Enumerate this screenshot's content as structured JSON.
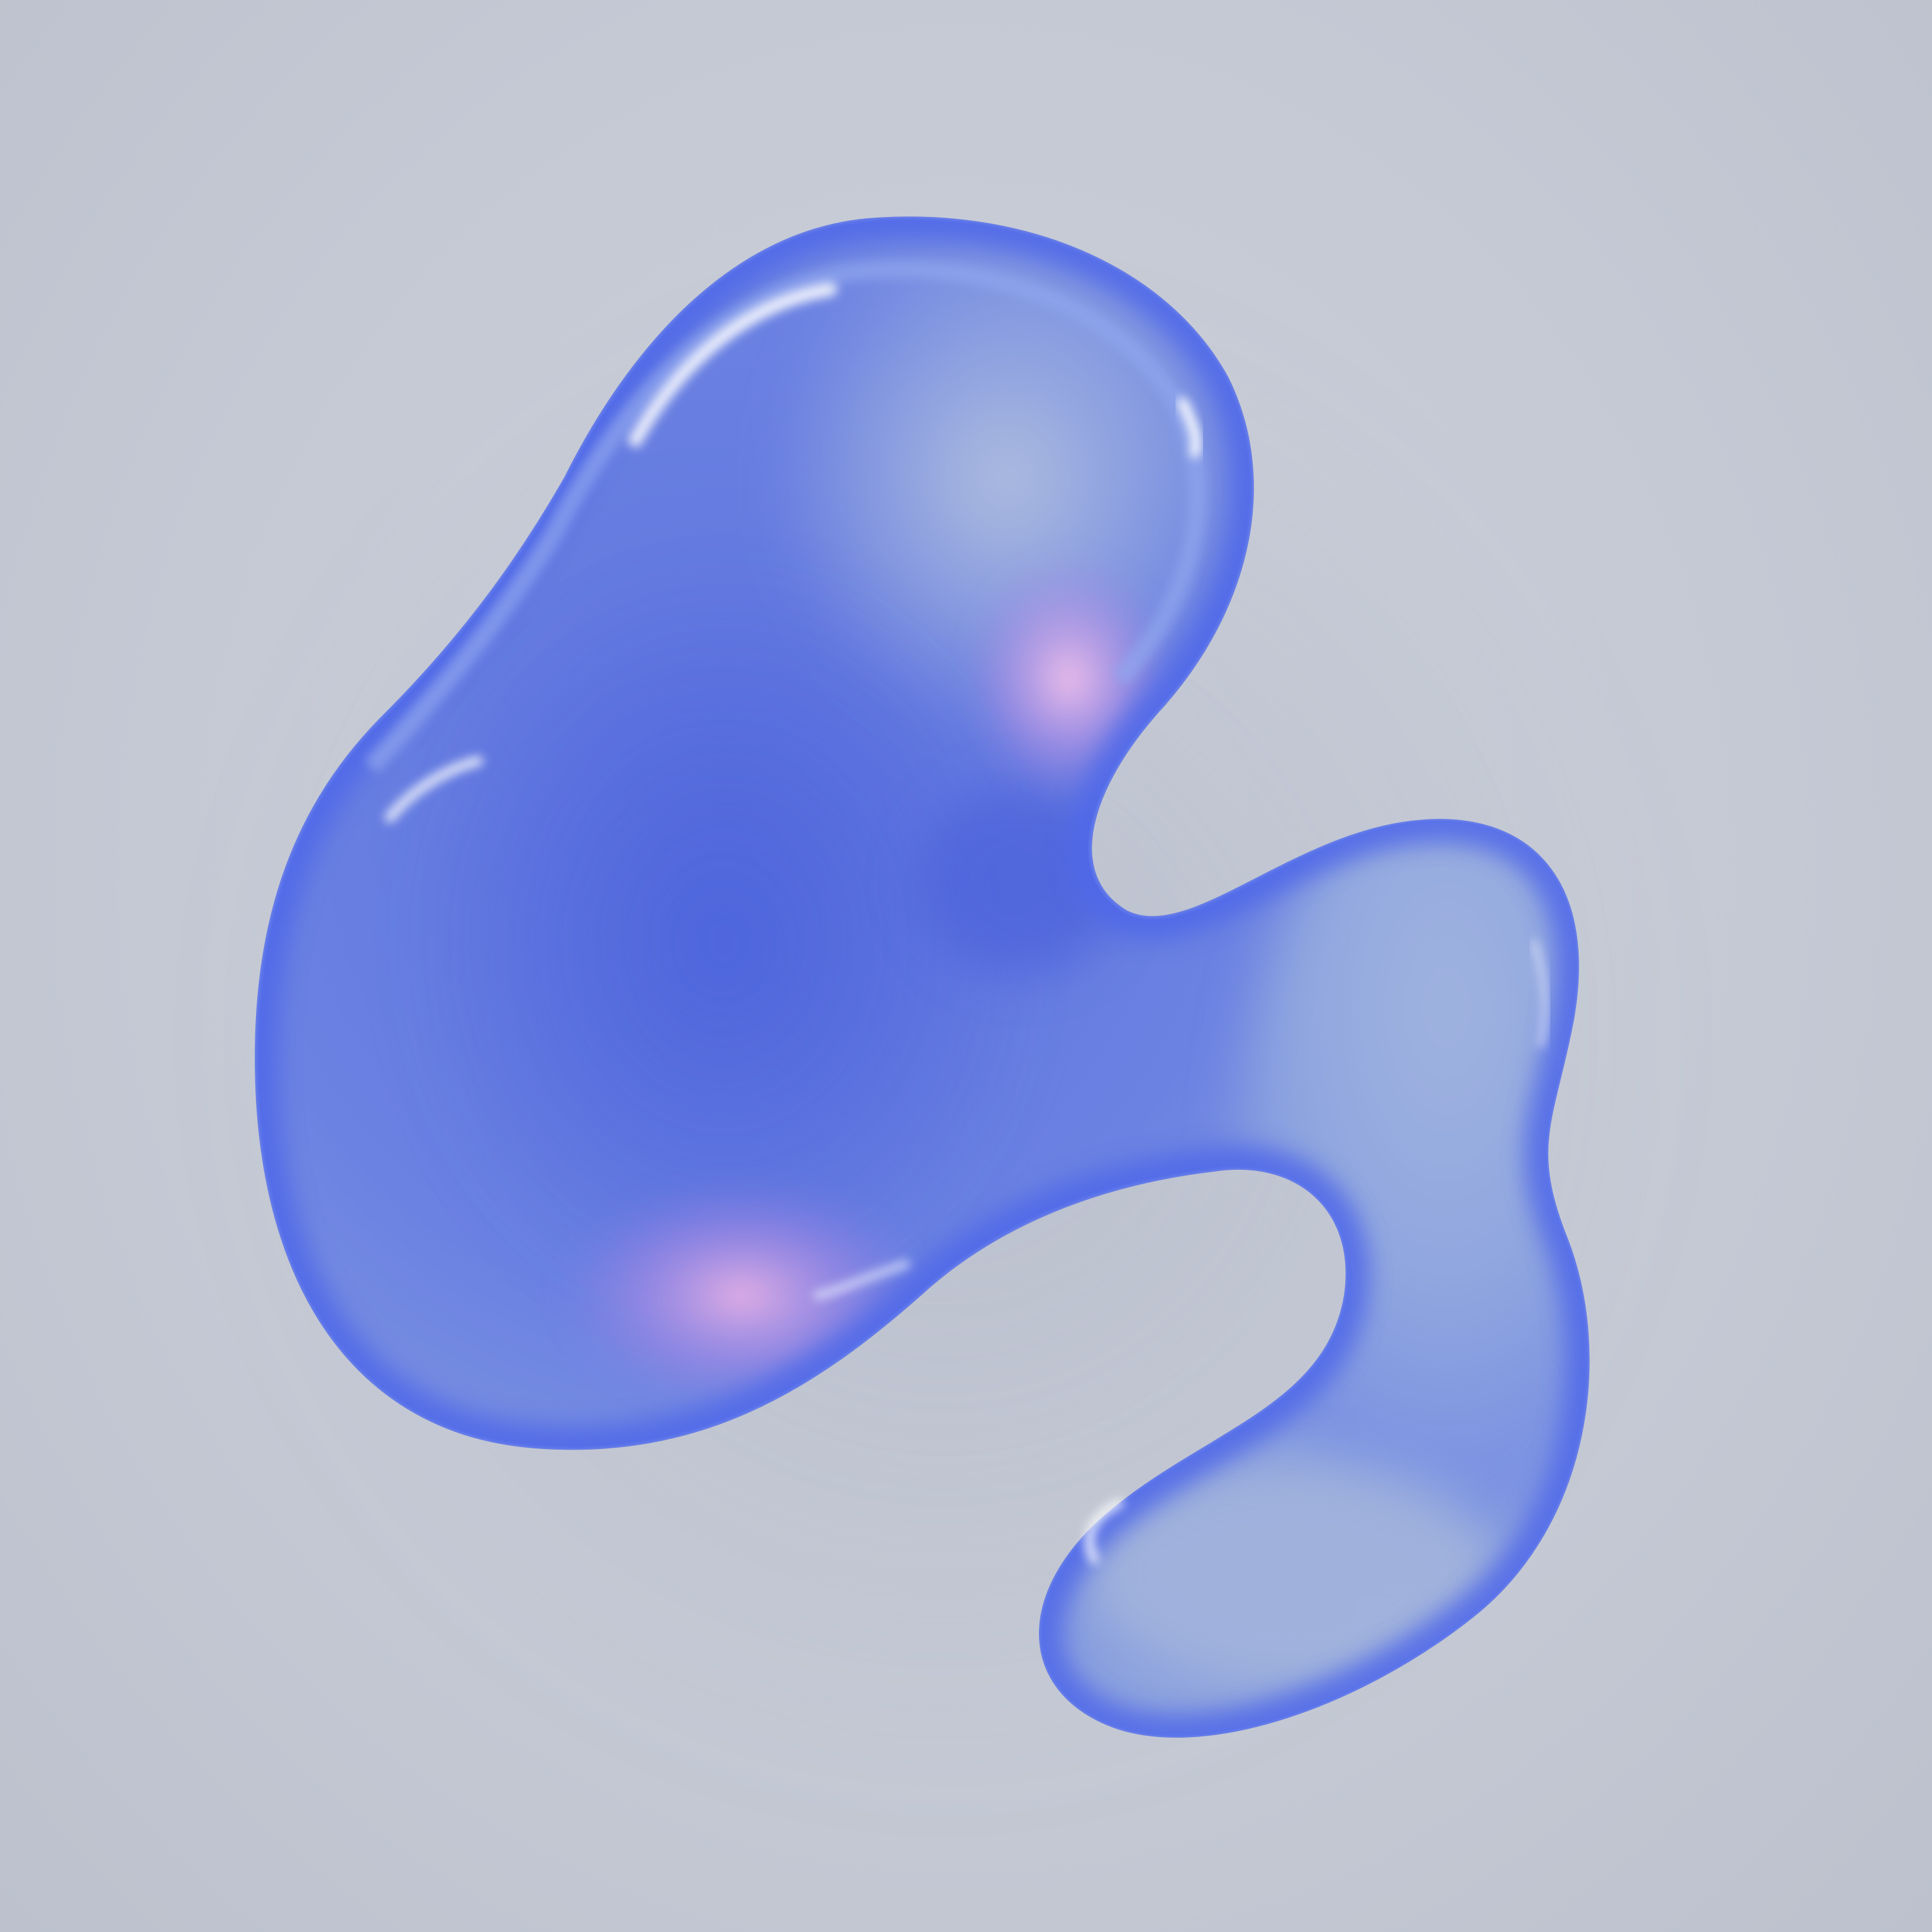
{
  "scene": {
    "subject": "glossy-blob",
    "colors": {
      "background": "#c6cad5",
      "blob_deep_blue": "#5b6fe0",
      "blob_mid_blue": "#7f97e2",
      "blob_pale_blue": "#a7b8dc",
      "blob_violet": "#9a7fe0",
      "rim_blue": "#4f68e8",
      "highlight_white": "#ffffff",
      "pink_glow": "#f3b7e6"
    }
  }
}
